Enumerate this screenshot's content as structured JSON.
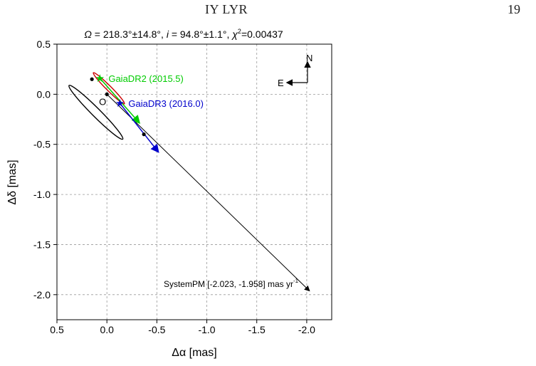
{
  "header": {
    "running_title": "IY LYR",
    "page_number": "19"
  },
  "chart_data": {
    "type": "scatter",
    "title": "Ω = 218.3°±14.8°, i = 94.8°±1.1°, χ²=0.00437",
    "title_parts": {
      "omega_symbol": "Ω",
      "omega_value": " = 218.3°±14.8°, ",
      "incl_symbol": "i",
      "incl_value": " = 94.8°±1.1°, ",
      "chi_symbol": "χ",
      "chi_sup": "2",
      "chi_value": "=0.00437"
    },
    "xlabel": "Δα [mas]",
    "ylabel": "Δδ [mas]",
    "xlim": [
      0.5,
      -2.25
    ],
    "ylim": [
      -2.25,
      0.5
    ],
    "x_reversed": true,
    "x_ticks": [
      0.5,
      0.0,
      -0.5,
      -1.0,
      -1.5,
      -2.0
    ],
    "x_tick_labels": [
      "0.5",
      "0.0",
      "-0.5",
      "-1.0",
      "-1.5",
      "-2.0"
    ],
    "y_ticks": [
      0.5,
      0.0,
      -0.5,
      -1.0,
      -1.5,
      -2.0
    ],
    "y_tick_labels": [
      "0.5",
      "0.0",
      "-0.5",
      "-1.0",
      "-1.5",
      "-2.0"
    ],
    "grid": true,
    "origin_label": "O",
    "compass": {
      "north": "N",
      "east": "E"
    },
    "system_pm_label": "SystemPM [-2.023, -1.958] mas yr",
    "system_pm_label_sup": "-1",
    "system_pm_vector": [
      -2.023,
      -1.958
    ],
    "orbits": [
      {
        "color": "#000000",
        "center": [
          0.11,
          -0.18
        ],
        "semi_major": 0.38,
        "semi_minor": 0.042,
        "angle_deg": 135
      },
      {
        "color": "#cc0000",
        "center": [
          -0.02,
          0.06
        ],
        "semi_major": 0.22,
        "semi_minor": 0.024,
        "angle_deg": 135
      }
    ],
    "positions": [
      {
        "x": -0.0,
        "y": 0.0
      },
      {
        "x": -0.37,
        "y": -0.4
      },
      {
        "x": 0.15,
        "y": 0.15
      }
    ],
    "gaia_points": [
      {
        "name": "GaiaDR2 (2015.5)",
        "color": "#00cc00",
        "x": 0.07,
        "y": 0.16,
        "pm_end": [
          -0.32,
          -0.28
        ]
      },
      {
        "name": "GaiaDR3 (2016.0)",
        "color": "#0000cc",
        "x": -0.13,
        "y": -0.09,
        "pm_end": [
          -0.51,
          -0.57
        ]
      }
    ]
  }
}
